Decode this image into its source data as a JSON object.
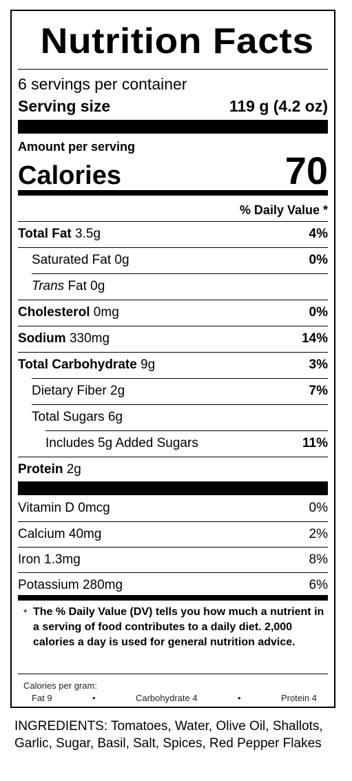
{
  "title": "Nutrition Facts",
  "servings_per_container": "6 servings per container",
  "serving_size_label": "Serving size",
  "serving_size_value": "119 g (4.2 oz)",
  "amount_per_serving": "Amount per serving",
  "calories_label": "Calories",
  "calories_value": "70",
  "dv_header": "% Daily Value *",
  "nutrients": [
    {
      "bold": "Total Fat",
      "amount": " 3.5g",
      "dv": "4%"
    },
    {
      "bold": "",
      "amount": "Saturated Fat 0g",
      "dv": "0%"
    },
    {
      "italic": "Trans",
      "amount": " Fat 0g",
      "dv": ""
    },
    {
      "bold": "Cholesterol",
      "amount": " 0mg",
      "dv": "0%"
    },
    {
      "bold": "Sodium",
      "amount": " 330mg",
      "dv": "14%"
    },
    {
      "bold": "Total Carbohydrate",
      "amount": " 9g",
      "dv": "3%"
    },
    {
      "bold": "",
      "amount": "Dietary Fiber 2g",
      "dv": "7%"
    },
    {
      "bold": "",
      "amount": "Total Sugars 6g",
      "dv": ""
    },
    {
      "bold": "",
      "amount": "Includes 5g Added Sugars",
      "dv": "11%"
    },
    {
      "bold": "Protein",
      "amount": " 2g",
      "dv": ""
    }
  ],
  "vitamins": [
    {
      "name": "Vitamin D 0mcg",
      "dv": "0%"
    },
    {
      "name": "Calcium 40mg",
      "dv": "2%"
    },
    {
      "name": "Iron 1.3mg",
      "dv": "8%"
    },
    {
      "name": "Potassium 280mg",
      "dv": "6%"
    }
  ],
  "footnote_star": "*",
  "footnote_text": "The % Daily Value (DV) tells you how much a nutrient in a serving of food contributes to a daily diet. 2,000 calories a day is used for general nutrition advice.",
  "calories_per_gram": "Calories per gram:",
  "cpg_fat": "Fat 9",
  "cpg_carb": "Carbohydrate 4",
  "cpg_protein": "Protein 4",
  "bullet": "•",
  "ingredients": "INGREDIENTS: Tomatoes, Water, Olive Oil, Shallots, Garlic, Sugar, Basil, Salt, Spices, Red Pepper Flakes"
}
